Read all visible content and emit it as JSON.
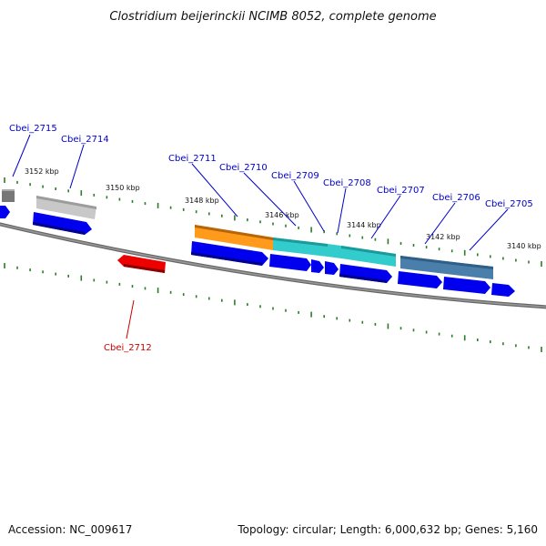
{
  "title": "Clostridium beijerinckii NCIMB 8052, complete genome",
  "footer": {
    "accession": "Accession: NC_009617",
    "topology": "Topology: circular; Length: 6,000,632 bp; Genes: 5,160"
  },
  "scale": {
    "ticks": [
      {
        "label": "3152 kbp"
      },
      {
        "label": "3150 kbp"
      },
      {
        "label": "3148 kbp"
      },
      {
        "label": "3146 kbp"
      },
      {
        "label": "3144 kbp"
      },
      {
        "label": "3142 kbp"
      },
      {
        "label": "3140 kbp"
      }
    ]
  },
  "genes": [
    {
      "label": "Cbei_2715",
      "strand": "+",
      "color": "#0000cc"
    },
    {
      "label": "Cbei_2714",
      "strand": "+",
      "color": "#0000cc"
    },
    {
      "label": "Cbei_2711",
      "strand": "+",
      "color": "#0000cc"
    },
    {
      "label": "Cbei_2710",
      "strand": "+",
      "color": "#0000cc"
    },
    {
      "label": "Cbei_2709",
      "strand": "+",
      "color": "#0000cc"
    },
    {
      "label": "Cbei_2708",
      "strand": "+",
      "color": "#0000cc"
    },
    {
      "label": "Cbei_2707",
      "strand": "+",
      "color": "#0000cc"
    },
    {
      "label": "Cbei_2706",
      "strand": "+",
      "color": "#0000cc"
    },
    {
      "label": "Cbei_2705",
      "strand": "+",
      "color": "#0000cc"
    },
    {
      "label": "Cbei_2712",
      "strand": "-",
      "color": "#cc0000"
    }
  ],
  "colors": {
    "forward_gene": "#0000ee",
    "reverse_gene": "#ee0000",
    "backbone": "#777777",
    "tick": "#2a7d2a",
    "cog_orange": "#ff9a1a",
    "cog_cyan": "#2ec8c8",
    "cog_steelblue": "#4a7eaa",
    "cog_gray": "#bbbbbb",
    "cog_darkgray": "#777777"
  }
}
